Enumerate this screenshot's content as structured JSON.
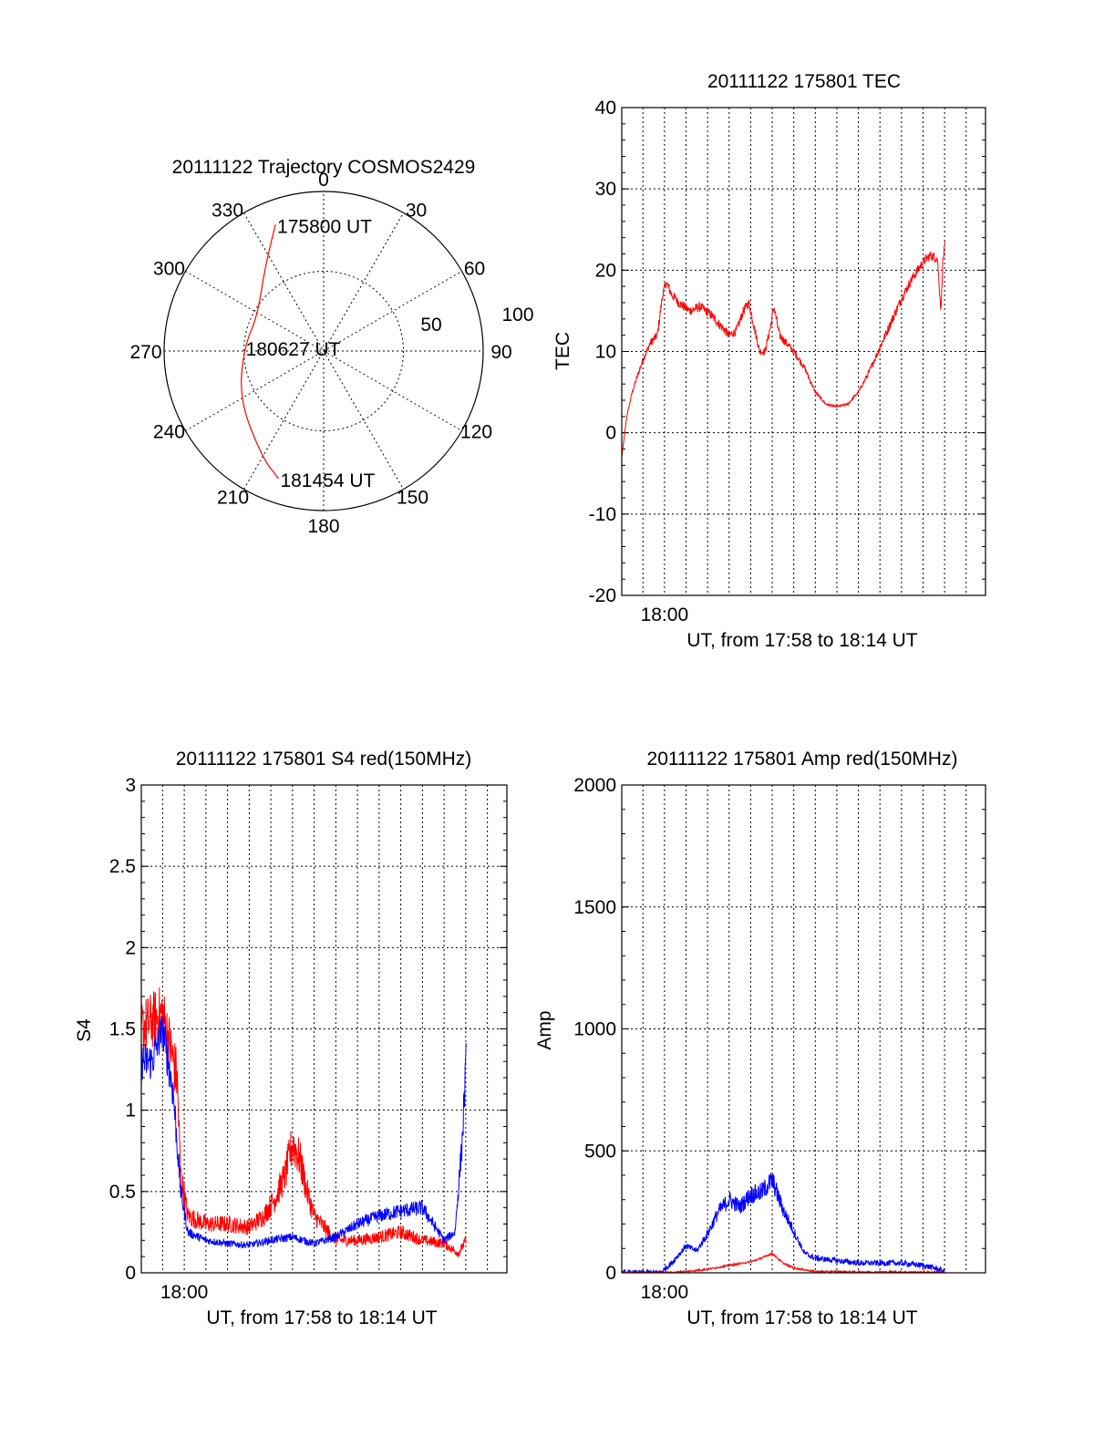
{
  "chart_data": [
    {
      "type": "polar",
      "title": "20111122 Trajectory COSMOS2429",
      "angle_labels": [
        "0",
        "30",
        "60",
        "90",
        "120",
        "150",
        "180",
        "210",
        "240",
        "270",
        "300",
        "330"
      ],
      "radial_labels": [
        "50",
        "100"
      ],
      "rlim": [
        0,
        100
      ],
      "grid": true,
      "series": [
        {
          "color": "#ff0000",
          "points": [
            {
              "az": -20.9,
              "r": 84.8
            },
            {
              "az": -36,
              "r": 63
            },
            {
              "az": -62,
              "r": 47
            },
            {
              "az": -87.5,
              "r": 50
            },
            {
              "az": -120,
              "r": 61
            },
            {
              "az": -150,
              "r": 77
            },
            {
              "az": -160.5,
              "r": 84.8
            }
          ]
        }
      ],
      "annotations": [
        {
          "text": "175800 UT",
          "az": -20.9,
          "r": 84.8
        },
        {
          "text": "180627 UT",
          "az": -87.5,
          "r": 50
        },
        {
          "text": "181454 UT",
          "az": -160.5,
          "r": 84.8
        }
      ]
    },
    {
      "type": "line",
      "title": "20111122 175801 TEC",
      "xlabel": "UT, from 17:58 to 18:14 UT",
      "ylabel": "TEC",
      "xlim": [
        "17:58:01",
        "18:14:54"
      ],
      "ylim": [
        -20,
        40
      ],
      "yticks": [
        "-20",
        "-10",
        "0",
        "10",
        "20",
        "30",
        "40"
      ],
      "xtick_labels": [
        {
          "value": "18:00",
          "label": "18:00"
        }
      ],
      "grid": true,
      "series": [
        {
          "color": "#ff0000",
          "noise": 0.6,
          "points": [
            [
              "17:58:01",
              -3
            ],
            [
              "17:58:15",
              2
            ],
            [
              "17:58:30",
              5
            ],
            [
              "17:58:45",
              7
            ],
            [
              "17:59:00",
              9
            ],
            [
              "17:59:20",
              11
            ],
            [
              "17:59:40",
              12
            ],
            [
              "17:59:55",
              17
            ],
            [
              "18:00:05",
              18.5
            ],
            [
              "18:00:20",
              17
            ],
            [
              "18:00:40",
              16
            ],
            [
              "18:01:10",
              15
            ],
            [
              "18:01:40",
              15.5
            ],
            [
              "18:02:10",
              14.5
            ],
            [
              "18:02:40",
              13
            ],
            [
              "18:03:00",
              12
            ],
            [
              "18:03:20",
              12.5
            ],
            [
              "18:03:40",
              15
            ],
            [
              "18:03:55",
              16
            ],
            [
              "18:04:10",
              13
            ],
            [
              "18:04:25",
              10
            ],
            [
              "18:04:40",
              10
            ],
            [
              "18:04:55",
              13
            ],
            [
              "18:05:05",
              15.5
            ],
            [
              "18:05:20",
              12
            ],
            [
              "18:05:40",
              11
            ],
            [
              "18:06:00",
              10
            ],
            [
              "18:06:30",
              8
            ],
            [
              "18:07:00",
              5
            ],
            [
              "18:07:30",
              3.5
            ],
            [
              "18:08:00",
              3.2
            ],
            [
              "18:08:30",
              3.5
            ],
            [
              "18:09:00",
              5
            ],
            [
              "18:09:30",
              7.5
            ],
            [
              "18:10:00",
              10.5
            ],
            [
              "18:10:30",
              13.5
            ],
            [
              "18:11:00",
              16.5
            ],
            [
              "18:11:30",
              19
            ],
            [
              "18:12:00",
              21
            ],
            [
              "18:12:20",
              21.8
            ],
            [
              "18:12:40",
              21.5
            ],
            [
              "18:12:50",
              15
            ],
            [
              "18:12:55",
              21
            ],
            [
              "18:13:01",
              23
            ]
          ]
        }
      ]
    },
    {
      "type": "line",
      "title": "20111122 175801 S4 red(150MHz)",
      "xlabel": "UT, from 17:58 to 18:14 UT",
      "ylabel": "S4",
      "xlim": [
        "17:58:01",
        "18:14:54"
      ],
      "ylim": [
        0,
        3
      ],
      "yticks": [
        "0",
        "0.5",
        "1",
        "1.5",
        "2",
        "2.5",
        "3"
      ],
      "xtick_labels": [
        {
          "value": "18:00",
          "label": "18:00"
        }
      ],
      "grid": true,
      "series": [
        {
          "color": "#ff0000",
          "noise": 0.18,
          "points": [
            [
              "17:58:01",
              1.5
            ],
            [
              "17:59:00",
              1.6
            ],
            [
              "17:59:40",
              1.2
            ],
            [
              "17:59:50",
              0.6
            ],
            [
              "18:00:10",
              0.35
            ],
            [
              "18:01:00",
              0.3
            ],
            [
              "18:02:00",
              0.3
            ],
            [
              "18:03:00",
              0.28
            ],
            [
              "18:03:40",
              0.35
            ],
            [
              "18:04:10",
              0.45
            ],
            [
              "18:04:40",
              0.6
            ],
            [
              "18:05:00",
              0.8
            ],
            [
              "18:05:20",
              0.7
            ],
            [
              "18:05:40",
              0.5
            ],
            [
              "18:06:00",
              0.35
            ],
            [
              "18:07:00",
              0.2
            ],
            [
              "18:08:00",
              0.2
            ],
            [
              "18:09:00",
              0.22
            ],
            [
              "18:10:00",
              0.25
            ],
            [
              "18:11:00",
              0.2
            ],
            [
              "18:12:00",
              0.18
            ],
            [
              "18:12:40",
              0.12
            ],
            [
              "18:13:01",
              0.2
            ]
          ]
        },
        {
          "color": "#0000ff",
          "noise": 0.12,
          "points": [
            [
              "17:58:01",
              1.3
            ],
            [
              "17:58:30",
              1.3
            ],
            [
              "17:59:00",
              1.5
            ],
            [
              "17:59:30",
              1.1
            ],
            [
              "17:59:50",
              0.5
            ],
            [
              "18:00:10",
              0.25
            ],
            [
              "18:01:00",
              0.2
            ],
            [
              "18:02:00",
              0.18
            ],
            [
              "18:03:00",
              0.17
            ],
            [
              "18:04:00",
              0.2
            ],
            [
              "18:05:00",
              0.22
            ],
            [
              "18:06:00",
              0.18
            ],
            [
              "18:07:00",
              0.22
            ],
            [
              "18:08:00",
              0.3
            ],
            [
              "18:09:00",
              0.35
            ],
            [
              "18:10:00",
              0.38
            ],
            [
              "18:11:00",
              0.4
            ],
            [
              "18:11:30",
              0.3
            ],
            [
              "18:12:00",
              0.2
            ],
            [
              "18:12:30",
              0.25
            ],
            [
              "18:12:50",
              0.8
            ],
            [
              "18:13:01",
              1.3
            ]
          ]
        }
      ]
    },
    {
      "type": "line",
      "title": "20111122 175801 Amp red(150MHz)",
      "xlabel": "UT, from 17:58 to 18:14 UT",
      "ylabel": "Amp",
      "xlim": [
        "17:58:01",
        "18:14:54"
      ],
      "ylim": [
        0,
        2000
      ],
      "yticks": [
        "0",
        "500",
        "1000",
        "1500",
        "2000"
      ],
      "xtick_labels": [
        {
          "value": "18:00",
          "label": "18:00"
        }
      ],
      "grid": true,
      "series": [
        {
          "color": "#0000ff",
          "noise": 80,
          "points": [
            [
              "17:58:01",
              0
            ],
            [
              "17:59:00",
              0
            ],
            [
              "17:59:50",
              2
            ],
            [
              "18:00:20",
              40
            ],
            [
              "18:01:00",
              110
            ],
            [
              "18:01:30",
              90
            ],
            [
              "18:02:00",
              160
            ],
            [
              "18:02:30",
              250
            ],
            [
              "18:03:00",
              300
            ],
            [
              "18:03:30",
              270
            ],
            [
              "18:04:00",
              320
            ],
            [
              "18:04:30",
              330
            ],
            [
              "18:05:00",
              380
            ],
            [
              "18:05:30",
              260
            ],
            [
              "18:06:00",
              170
            ],
            [
              "18:06:30",
              80
            ],
            [
              "18:07:00",
              60
            ],
            [
              "18:08:00",
              50
            ],
            [
              "18:09:00",
              40
            ],
            [
              "18:10:00",
              40
            ],
            [
              "18:11:00",
              40
            ],
            [
              "18:12:00",
              30
            ],
            [
              "18:12:30",
              20
            ],
            [
              "18:13:01",
              5
            ]
          ]
        },
        {
          "color": "#ff0000",
          "noise": 25,
          "points": [
            [
              "17:58:01",
              0
            ],
            [
              "18:00:00",
              0
            ],
            [
              "18:01:00",
              5
            ],
            [
              "18:02:00",
              15
            ],
            [
              "18:03:00",
              30
            ],
            [
              "18:04:00",
              45
            ],
            [
              "18:04:30",
              60
            ],
            [
              "18:05:00",
              80
            ],
            [
              "18:05:30",
              40
            ],
            [
              "18:06:00",
              20
            ],
            [
              "18:07:00",
              5
            ],
            [
              "18:13:01",
              2
            ]
          ]
        }
      ]
    }
  ]
}
